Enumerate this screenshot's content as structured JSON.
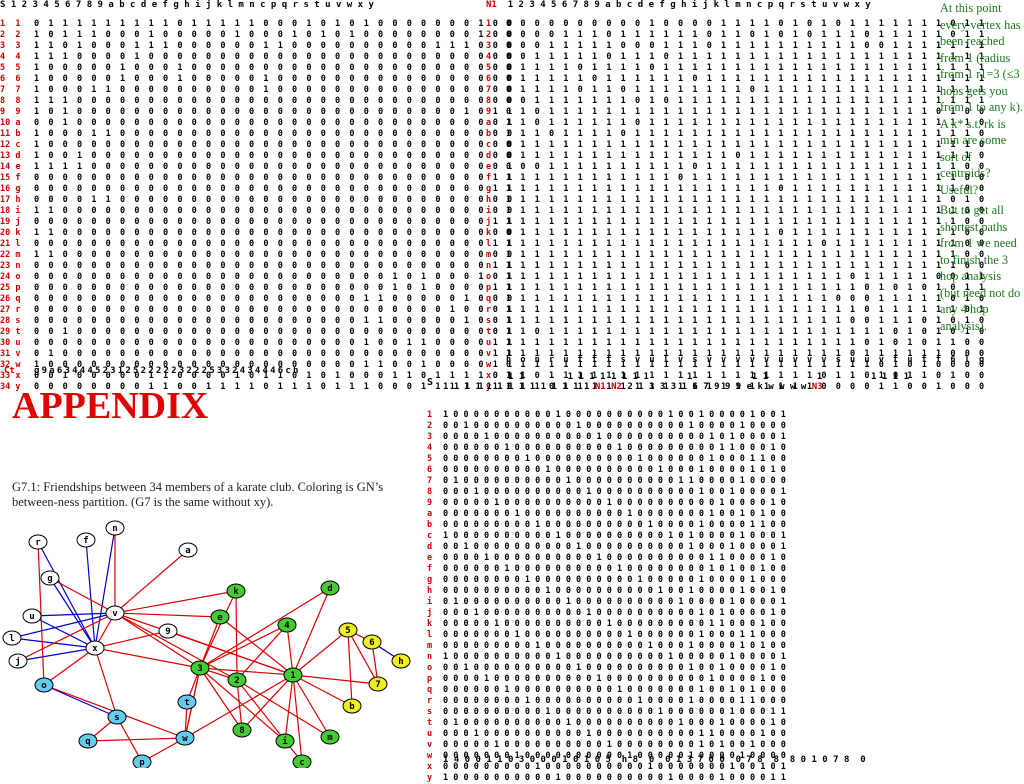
{
  "matrix1": {
    "corner": "S",
    "header_cols": [
      "1",
      "2",
      "3",
      "4",
      "5",
      "6",
      "7",
      "8",
      "9",
      "a",
      "b",
      "c",
      "d",
      "e",
      "f",
      "g",
      "h",
      "i",
      "j",
      "k",
      "l",
      "m",
      "n",
      "c",
      "p",
      "q",
      "r",
      "s",
      "t",
      "u",
      "v",
      "w",
      "x",
      "y"
    ],
    "row_labels": [
      "1  1",
      "2  2",
      "3  3",
      "4  4",
      "5  5",
      "6  6",
      "7  7",
      "8  8",
      "9  9",
      "10 a",
      "11 b",
      "12 c",
      "13 d",
      "14 e",
      "15 f",
      "16 g",
      "17 h",
      "18 i",
      "19 j",
      "20 k",
      "21 l",
      "22 m",
      "23 n",
      "24 o",
      "25 p",
      "26 q",
      "27 r",
      "28 s",
      "29 t",
      "30 u",
      "31 v",
      "32 w",
      "33 x",
      "34 y"
    ],
    "rows": [
      "0111111111011111000101010000000100",
      "1011100010000010001010100000000100",
      "1101000111000000110000000000111000",
      "1110000100000000000000000000000000",
      "1000001000100000000000000000000000",
      "1000001000100000100000000000000000",
      "1000110000000000100000000000000000",
      "1110000000000000000000000000000000",
      "1010000000000000000000000000001011",
      "0010000000000000000000000000000001",
      "1000110000000000000000000000000000",
      "1000000000000000000000000000000000",
      "1001000000000000000000000000000000",
      "1111000000000000000000000000000001",
      "0000000000000000000000000000000011",
      "0000000000000000000000000000000011",
      "0000110000000000000000000000000000",
      "1100000000000000000000000000000000",
      "0000000000000000000000000000000011",
      "1100000000000000000000000000000000",
      "0000000000000000000000000000000011",
      "1100000000000000000000000000000000",
      "0000000000000000000000000000000011",
      "0000000000000000000000000101000101",
      "0000000000000000000000000101000011",
      "0000000000000000000000011000001000",
      "0000000000000000000000000000010001",
      "0000000000000000000000011000001001",
      "0010000000000000000000000000000001",
      "0000000000000000000000010011000011",
      "0100000000000000000000000000000011",
      "1000000000000000000000011001000011",
      "0010000011000010110101000110111101",
      "0000000011001111011101110001111110"
    ],
    "ct_label": "Ct",
    "ct_values": "g9a634445231252222232225332434446ch"
  },
  "matrix2": {
    "corner": "N1",
    "header_cols": [
      "1",
      "2",
      "3",
      "4",
      "5",
      "6",
      "7",
      "8",
      "9",
      "a",
      "b",
      "c",
      "d",
      "e",
      "f",
      "g",
      "h",
      "i",
      "j",
      "k",
      "l",
      "m",
      "n",
      "c",
      "p",
      "q",
      "r",
      "s",
      "t",
      "u",
      "v",
      "w",
      "x",
      "y"
    ],
    "row_labels": [
      "1",
      "2",
      "3",
      "4",
      "5",
      "6",
      "7",
      "8",
      "9",
      "a",
      "b",
      "c",
      "d",
      "e",
      "f",
      "g",
      "h",
      "i",
      "j",
      "k",
      "l",
      "m",
      "n",
      "o",
      "p",
      "q",
      "r",
      "s",
      "t",
      "u",
      "v",
      "w",
      "x",
      "y"
    ],
    "rows": [
      "0000000000100001111010101111111011",
      "0000111011111101101010111011111011",
      "0001111100011101111111111001111111",
      "0011111011101111111111111111111111",
      "0111101111011111111111111111111111",
      "0111110111111011111111111111111111",
      "0111101101111111101111111111111111",
      "0011111110101111111111111111111111",
      "0101111111111111111111111111110100",
      "1101111110111111111111111111111110",
      "1110111101111111111111111111111110",
      "0111111111111111111111111111111110",
      "0111111111111111011111111111111110",
      "0001111111111011111111111111111100",
      "1111111111110111111111111111111100",
      "1111111111111111111011111111111100",
      "1111111111111111111111111111111010",
      "1111111111111111111111111111111100",
      "1111111111111111111111111111111100",
      "0111111111111111111011111111111100",
      "1111111111111111111111011111111100",
      "1111111111111111111111111111111100",
      "1111111111111111111111111111111100",
      "1111111111111111111111110111110011",
      "1111111111111111111111111010101011",
      "1111111111111111111111100011111010",
      "1111111111111111111111111011111101",
      "1111111111111111111111110011101010",
      "1101111111111111111111111110101010",
      "1111111111111111111111111010101100",
      "1111111111111111111111110111111000",
      "0111111111111111111111111101010000",
      "1101111111111111111111011010110100",
      "1110111111111111111111000011001000"
    ],
    "footer": "honrutttsvulvsvvvvvuvvvsuuvtutt6lg"
  },
  "side_note": {
    "p1": "At this point every vertex has been reached from 1 (radius from 1 r1=3 (≤3 hops gets you from 1 to any k). A k* s.t. rk is min are some sort of centroids? Useful?",
    "p2": "But to get all shortest paths from 1 we need to finish the 3 hop analysis (but need not do any 4 hop analysis)."
  },
  "appendix_title": "APPENDIX",
  "caption": "G7.1: Friendships between 34 members of a karate club. Coloring is GN’s between-ness partition.  (G7 is the same without xy).",
  "graph": {
    "nodes": [
      {
        "id": "r",
        "label": "r",
        "color": "#ffffff"
      },
      {
        "id": "f",
        "label": "f",
        "color": "#ffffff"
      },
      {
        "id": "n",
        "label": "n",
        "color": "#ffffff"
      },
      {
        "id": "a",
        "label": "a",
        "color": "#ffffff"
      },
      {
        "id": "g",
        "label": "g",
        "color": "#ffffff"
      },
      {
        "id": "v",
        "label": "v",
        "color": "#ffffff"
      },
      {
        "id": "u",
        "label": "u",
        "color": "#ffffff"
      },
      {
        "id": "l",
        "label": "l",
        "color": "#ffffff"
      },
      {
        "id": "x",
        "label": "x",
        "color": "#ffffff"
      },
      {
        "id": "j",
        "label": "j",
        "color": "#ffffff"
      },
      {
        "id": "9",
        "label": "9",
        "color": "#ffffff"
      },
      {
        "id": "o",
        "label": "o",
        "color": "#66ccee"
      },
      {
        "id": "s",
        "label": "s",
        "color": "#66ccee"
      },
      {
        "id": "t",
        "label": "t",
        "color": "#66ccee"
      },
      {
        "id": "q",
        "label": "q",
        "color": "#66ccee"
      },
      {
        "id": "w",
        "label": "w",
        "color": "#66ccee"
      },
      {
        "id": "p",
        "label": "p",
        "color": "#66ccee"
      },
      {
        "id": "k",
        "label": "k",
        "color": "#44cc33"
      },
      {
        "id": "d",
        "label": "d",
        "color": "#44cc33"
      },
      {
        "id": "e",
        "label": "e",
        "color": "#44cc33"
      },
      {
        "id": "4",
        "label": "4",
        "color": "#44cc33"
      },
      {
        "id": "3",
        "label": "3",
        "color": "#44cc33"
      },
      {
        "id": "2",
        "label": "2",
        "color": "#44cc33"
      },
      {
        "id": "1",
        "label": "1",
        "color": "#44cc33"
      },
      {
        "id": "8",
        "label": "8",
        "color": "#44cc33"
      },
      {
        "id": "i",
        "label": "i",
        "color": "#44cc33"
      },
      {
        "id": "m",
        "label": "m",
        "color": "#44cc33"
      },
      {
        "id": "c",
        "label": "c",
        "color": "#44cc33"
      },
      {
        "id": "5",
        "label": "5",
        "color": "#eeee22"
      },
      {
        "id": "6",
        "label": "6",
        "color": "#eeee22"
      },
      {
        "id": "h",
        "label": "h",
        "color": "#eeee22"
      },
      {
        "id": "7",
        "label": "7",
        "color": "#eeee22"
      },
      {
        "id": "b",
        "label": "b",
        "color": "#eeee22"
      }
    ]
  },
  "matrix3": {
    "corner": "S",
    "header_top": "            1 1        1 1 1 1 1 1 1 1       1           1 1         1         1 1 1 1",
    "header_cols": [
      "1",
      "1",
      "1",
      "1",
      "1",
      "1",
      "1",
      "1",
      "1",
      "1",
      "1",
      "1",
      "1",
      "1",
      "N1",
      "N2",
      "2",
      "1",
      "3",
      "3",
      "3",
      "1",
      "6",
      "7",
      "9",
      "9",
      "9",
      "e",
      "k",
      "w",
      "w",
      "w",
      "w",
      "N3"
    ],
    "row_labels": [
      "1",
      "2",
      "3",
      "4",
      "5",
      "6",
      "7",
      "8",
      "9",
      "a",
      "b",
      "c",
      "d",
      "e",
      "f",
      "g",
      "h",
      "i",
      "j",
      "k",
      "l",
      "m",
      "n",
      "o",
      "p",
      "q",
      "r",
      "s",
      "t",
      "u",
      "v",
      "w",
      "x",
      "y"
    ],
    "footer": "1 4 0 0 1 1 0 3 0 0 0 1 0 1 0 5  h 8  0  0 1 3 7 0 0  0 7 8  8  8 0 1 0 7 8  0"
  }
}
